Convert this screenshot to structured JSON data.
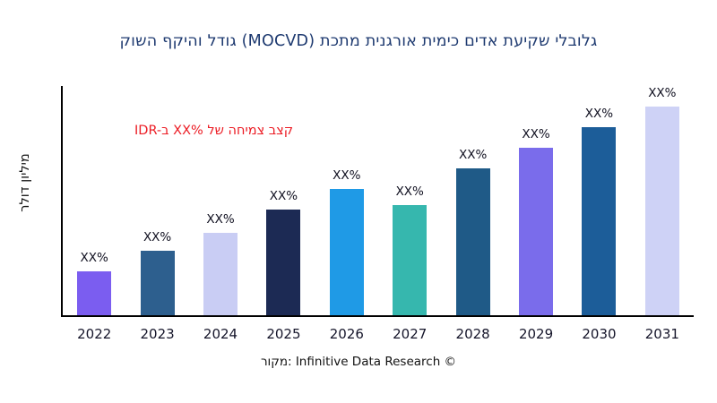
{
  "chart_data": {
    "type": "bar",
    "title": "קושה ףקיהו לדוג (MOCVD) תכתמ תינגרוא תימיכ םידא תעיקש ילבולג",
    "ylabel": "רלוד ןוילימ",
    "xlabel": "",
    "annotation": "IDR-ב XX% לש החימצ בצק",
    "source": "רוקמ: Infinitive Data Research ©",
    "categories": [
      "2022",
      "2023",
      "2024",
      "2025",
      "2026",
      "2027",
      "2028",
      "2029",
      "2030",
      "2031"
    ],
    "values": [
      19,
      28,
      36,
      46,
      55,
      48,
      64,
      73,
      82,
      91
    ],
    "value_labels": [
      "XX%",
      "XX%",
      "XX%",
      "XX%",
      "XX%",
      "XX%",
      "XX%",
      "XX%",
      "XX%",
      "XX%"
    ],
    "bar_colors": [
      "#7b5df0",
      "#2d5f8e",
      "#c9cdf4",
      "#1c2a54",
      "#1f9ae6",
      "#36b7ae",
      "#1f5a87",
      "#7a6ceb",
      "#1c5d99",
      "#ced2f6"
    ],
    "ylim": [
      0,
      100
    ],
    "grid": false,
    "legend": false,
    "colors": {
      "title": "#1e3a70",
      "annotation": "#ec1c24",
      "axis": "#000000",
      "background": "#ffffff"
    }
  }
}
